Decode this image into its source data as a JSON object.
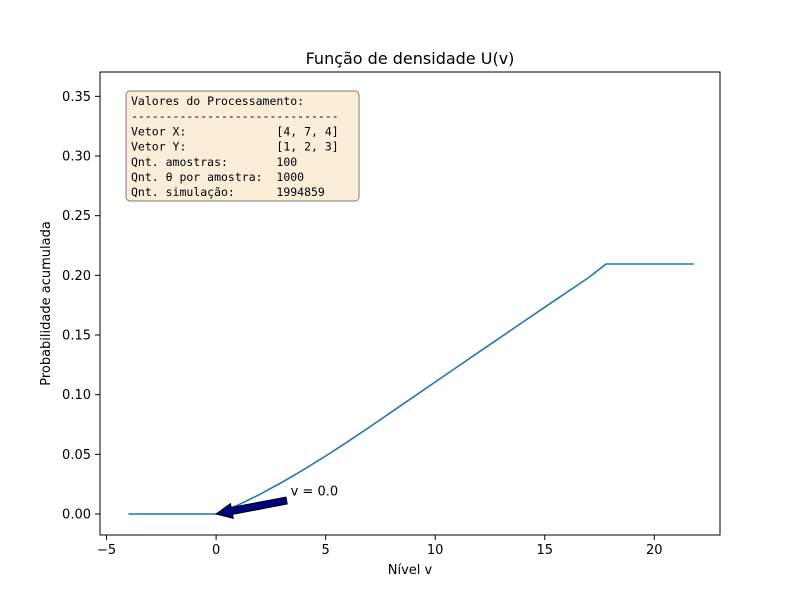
{
  "chart_data": {
    "type": "line",
    "title": "Função de densidade U(v)",
    "xlabel": "Nível v",
    "ylabel": "Probabilidade acumulada",
    "xlim": [
      -5.3,
      23
    ],
    "ylim": [
      -0.0176,
      0.3704
    ],
    "xticks": [
      -5,
      0,
      5,
      10,
      15,
      20
    ],
    "xtick_labels": [
      "−5",
      "0",
      "5",
      "10",
      "15",
      "20"
    ],
    "yticks": [
      0,
      0.05,
      0.1,
      0.15,
      0.2,
      0.25,
      0.3,
      0.35
    ],
    "ytick_labels": [
      "0.00",
      "0.05",
      "0.10",
      "0.15",
      "0.20",
      "0.25",
      "0.30",
      "0.35"
    ],
    "grid": false,
    "series": [
      {
        "color": "#1f77b4",
        "x": [
          -4,
          0,
          1,
          2,
          3,
          4,
          5,
          6,
          7,
          8,
          9,
          10,
          11,
          12,
          13,
          14,
          15,
          16,
          17,
          17.8,
          21.8
        ],
        "values": [
          0,
          0,
          0.0075,
          0.0165,
          0.0265,
          0.0372,
          0.0486,
          0.0605,
          0.0728,
          0.0854,
          0.098,
          0.1106,
          0.1232,
          0.1358,
          0.1483,
          0.1608,
          0.1733,
          0.1857,
          0.1981,
          0.2095,
          0.2095
        ]
      }
    ],
    "annotation": {
      "text": "v = 0.0",
      "point": [
        0,
        0
      ],
      "text_position": [
        3.4,
        0.0155
      ],
      "arrow_color": "#000080"
    },
    "info_box": {
      "background": "#f5deb3",
      "lines": [
        "Valores do Processamento:",
        "------------------------------",
        "Vetor X:             [4, 7, 4]",
        "Vetor Y:             [1, 2, 3]",
        "Qnt. amostras:       100",
        "Qnt. θ por amostra:  1000",
        "Qnt. simulação:      1994859"
      ]
    }
  }
}
